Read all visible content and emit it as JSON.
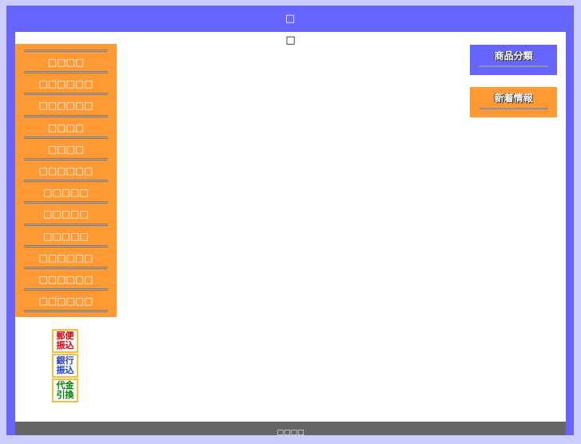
{
  "header": {
    "title": "□"
  },
  "content": {
    "heading": "□"
  },
  "menu": {
    "items": [
      "□□□□",
      "□□□□□□",
      "□□□□□□",
      "□□□□",
      "□□□□",
      "□□□□□□",
      "□□□□□",
      "□□□□□",
      "□□□□□",
      "□□□□□□",
      "□□□□□□",
      "□□□□□□"
    ]
  },
  "sidebar": {
    "boxes": [
      "商品分類",
      "新着情報"
    ]
  },
  "payments": [
    [
      "郵便",
      "振込"
    ],
    [
      "銀行",
      "振込"
    ],
    [
      "代金",
      "引換"
    ]
  ],
  "footer": {
    "text": "□□□□"
  }
}
